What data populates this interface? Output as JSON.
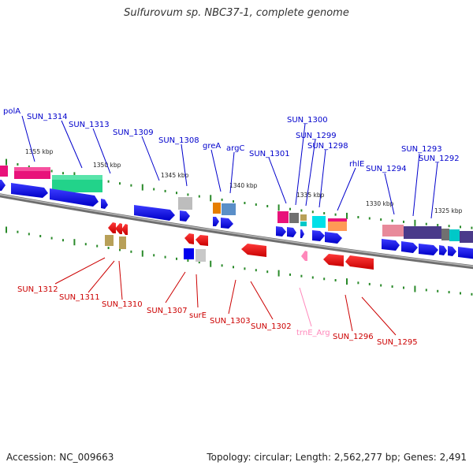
{
  "title": "Sulfurovum sp. NBC37-1, complete genome",
  "footer": {
    "accession": "Accession: NC_009663",
    "summary": "Topology: circular; Length: 2,562,277 bp; Genes: 2,491"
  },
  "colors": {
    "forward_label": "#0000cc",
    "reverse_label": "#cc0000",
    "trna_label": "#ff88bb",
    "forward_gene": "#0000ee",
    "reverse_gene": "#ee0000",
    "backbone": "#888888",
    "tick": "#2a8a2a"
  },
  "kbp_ticks": [
    "1355 kbp",
    "1350 kbp",
    "1345 kbp",
    "1340 kbp",
    "1335 kbp",
    "1330 kbp",
    "1325 kbp"
  ],
  "forward_labels": [
    "polA",
    "SUN_1314",
    "SUN_1313",
    "SUN_1309",
    "SUN_1308",
    "greA",
    "argC",
    "SUN_1301",
    "SUN_1300",
    "SUN_1299",
    "SUN_1298",
    "rhlE",
    "SUN_1294",
    "SUN_1293",
    "SUN_1292"
  ],
  "reverse_labels": [
    "SUN_1312",
    "SUN_1311",
    "SUN_1310",
    "SUN_1307",
    "surE",
    "SUN_1303",
    "SUN_1302",
    "trnE_Arg",
    "SUN_1296",
    "SUN_1295"
  ]
}
